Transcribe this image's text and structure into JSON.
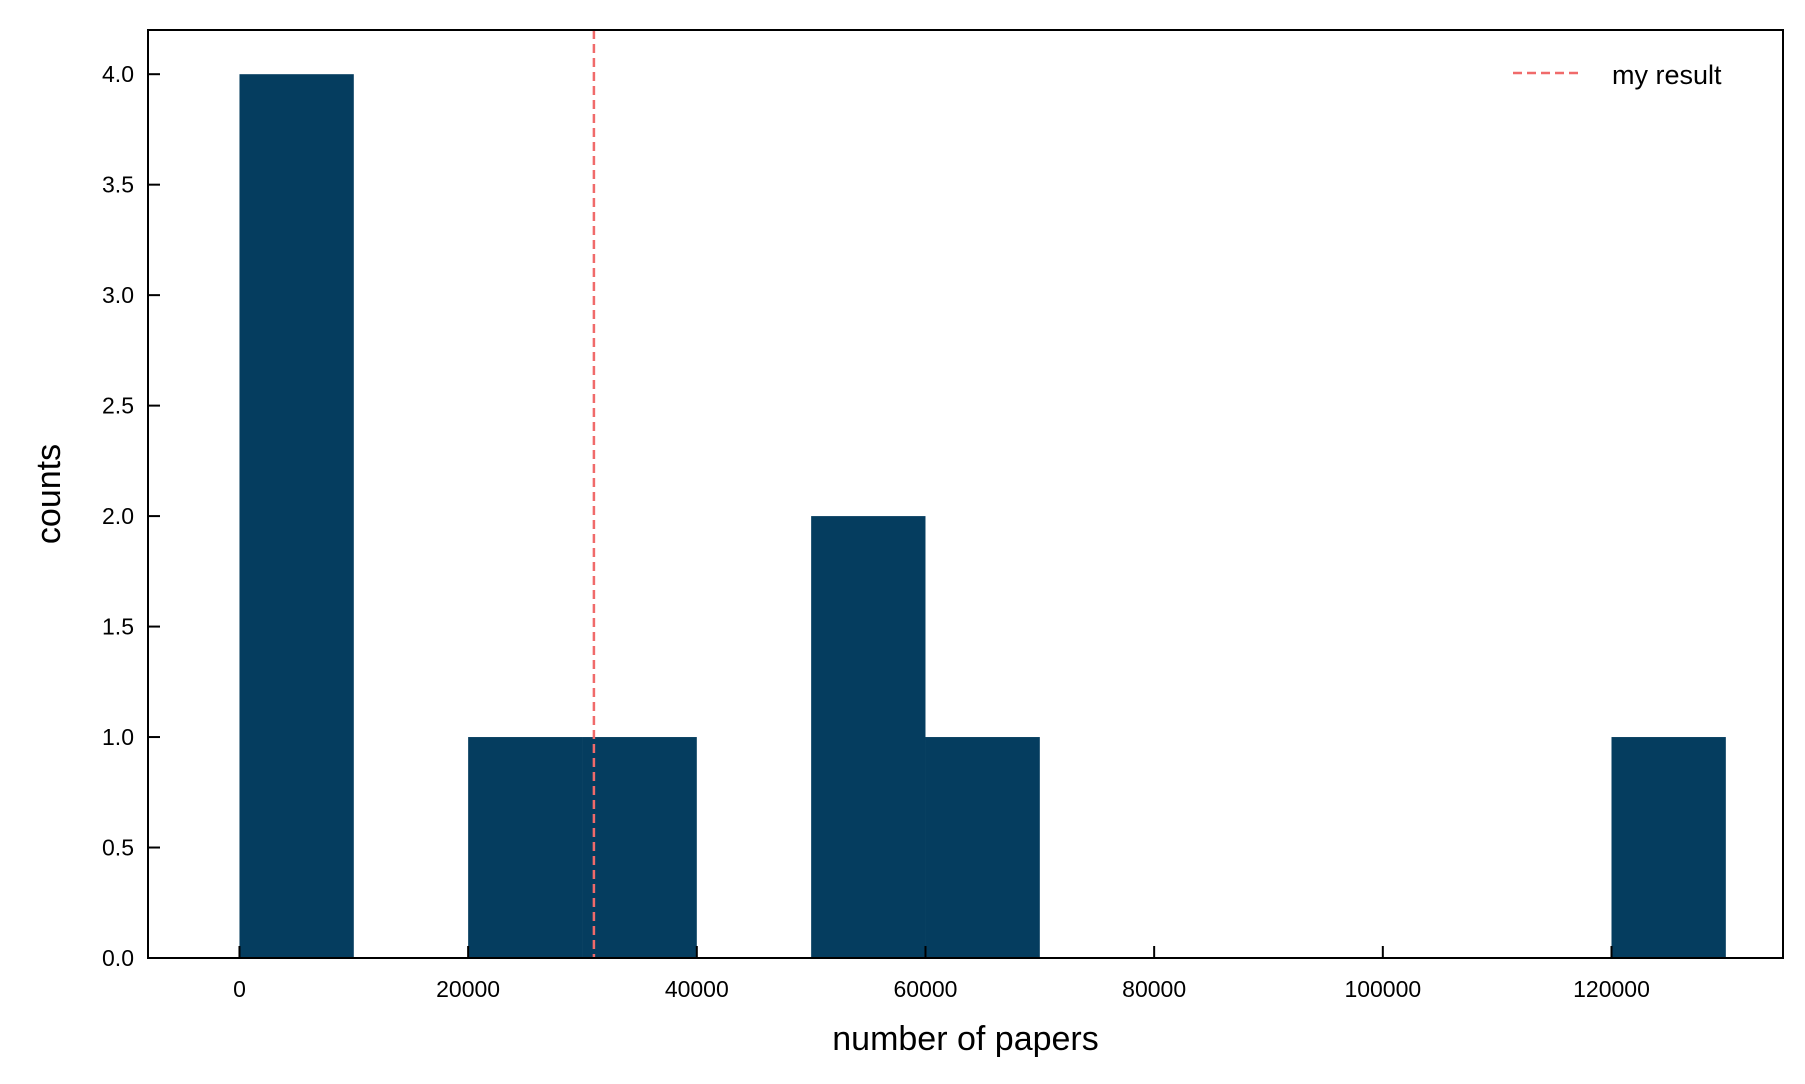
{
  "chart_data": {
    "type": "bar",
    "subtype": "histogram",
    "xlabel": "number of papers",
    "ylabel": "counts",
    "xlim": [
      -8000,
      135000
    ],
    "ylim": [
      0,
      4.2
    ],
    "x_ticks": [
      0,
      20000,
      40000,
      60000,
      80000,
      100000,
      120000
    ],
    "x_tick_labels": [
      "0",
      "20000",
      "40000",
      "60000",
      "80000",
      "100000",
      "120000"
    ],
    "y_ticks": [
      0,
      0.5,
      1,
      1.5,
      2,
      2.5,
      3,
      3.5,
      4
    ],
    "y_tick_labels": [
      "0.0",
      "0.5",
      "1.0",
      "1.5",
      "2.0",
      "2.5",
      "3.0",
      "3.5",
      "4.0"
    ],
    "bins": [
      {
        "start": 0,
        "end": 10000,
        "count": 4
      },
      {
        "start": 10000,
        "end": 20000,
        "count": 0
      },
      {
        "start": 20000,
        "end": 30000,
        "count": 1
      },
      {
        "start": 30000,
        "end": 40000,
        "count": 1
      },
      {
        "start": 40000,
        "end": 50000,
        "count": 0
      },
      {
        "start": 50000,
        "end": 60000,
        "count": 2
      },
      {
        "start": 60000,
        "end": 70000,
        "count": 1
      },
      {
        "start": 70000,
        "end": 80000,
        "count": 0
      },
      {
        "start": 80000,
        "end": 90000,
        "count": 0
      },
      {
        "start": 90000,
        "end": 100000,
        "count": 0
      },
      {
        "start": 100000,
        "end": 110000,
        "count": 0
      },
      {
        "start": 110000,
        "end": 120000,
        "count": 0
      },
      {
        "start": 120000,
        "end": 130000,
        "count": 1
      }
    ],
    "bar_color": "#053d5f",
    "reference_line": {
      "label": "my result",
      "x": 31000,
      "color": "#f06a6a",
      "style": "dashed"
    },
    "legend_placement": "top-right",
    "grid": false
  }
}
